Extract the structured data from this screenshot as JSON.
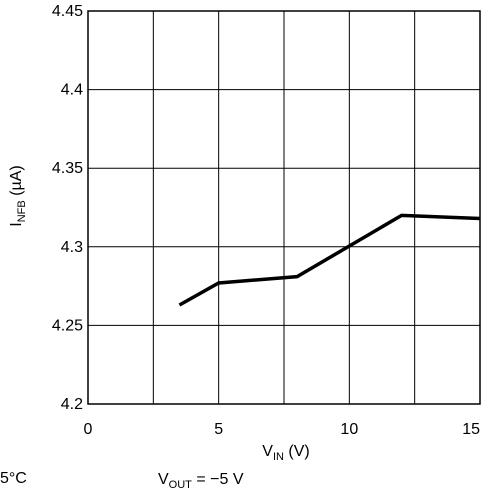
{
  "chart_data": {
    "type": "line",
    "x": [
      3.5,
      5,
      8,
      12,
      15
    ],
    "series": [
      {
        "values": [
          4.263,
          4.277,
          4.281,
          4.32,
          4.318
        ]
      }
    ],
    "xlim": [
      0,
      15
    ],
    "ylim": [
      4.2,
      4.45
    ],
    "xticks": [
      0,
      5,
      10,
      15
    ],
    "yticks": [
      4.2,
      4.25,
      4.3,
      4.35,
      4.4,
      4.45
    ],
    "xtick_labels": [
      "0",
      "5",
      "10",
      "15"
    ],
    "ytick_labels": [
      "4.2",
      "4.25",
      "4.3",
      "4.35",
      "4.4",
      "4.45"
    ],
    "xlabel": {
      "main": "V",
      "sub": "IN",
      "unit": " (V)"
    },
    "ylabel": {
      "main": "I",
      "sub": "NFB",
      "unit": " (µA)"
    },
    "grid": true,
    "annotations": {
      "left_partial": "5°C",
      "vout": {
        "main": "V",
        "sub": "OUT",
        "rest": " = −5 V"
      }
    },
    "line_color": "#000000"
  }
}
